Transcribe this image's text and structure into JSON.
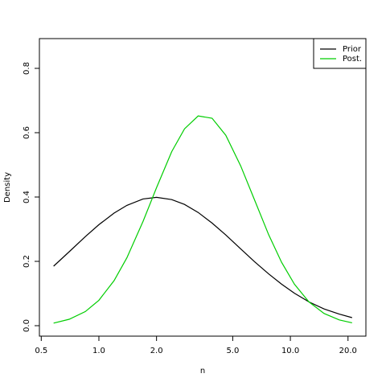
{
  "chart_data": {
    "type": "line",
    "xlabel": "n",
    "ylabel": "Density",
    "x": [
      0.58,
      0.7,
      0.85,
      1,
      1.2,
      1.4,
      1.7,
      2,
      2.4,
      2.8,
      3.3,
      3.9,
      4.6,
      5.5,
      6.5,
      7.7,
      9,
      10.5,
      12.5,
      15,
      18,
      21
    ],
    "series": [
      {
        "name": "Prior",
        "color": "#000000",
        "values": [
          0.185,
          0.23,
          0.277,
          0.314,
          0.35,
          0.374,
          0.394,
          0.399,
          0.392,
          0.377,
          0.352,
          0.319,
          0.282,
          0.239,
          0.199,
          0.161,
          0.129,
          0.101,
          0.074,
          0.052,
          0.036,
          0.025
        ]
      },
      {
        "name": "Post.",
        "color": "#00cd00",
        "values": [
          0.008,
          0.02,
          0.044,
          0.079,
          0.14,
          0.211,
          0.324,
          0.429,
          0.541,
          0.612,
          0.652,
          0.645,
          0.592,
          0.497,
          0.391,
          0.283,
          0.197,
          0.129,
          0.074,
          0.038,
          0.018,
          0.009
        ]
      }
    ],
    "xlog": true,
    "xlim": [
      0.489,
      24.8
    ],
    "xticks": [
      0.5,
      {
        "value": 1,
        "label": "1.0"
      },
      {
        "value": 2,
        "label": "2.0"
      },
      {
        "value": 5,
        "label": "5.0"
      },
      {
        "value": 10,
        "label": "10.0"
      },
      {
        "value": 20,
        "label": "20.0"
      }
    ],
    "ylim": [
      -0.0325,
      0.8925
    ],
    "yticks": [
      {
        "value": 0,
        "label": "0.0"
      },
      0.2,
      0.4,
      0.6,
      0.8
    ],
    "legend": "top-right"
  }
}
